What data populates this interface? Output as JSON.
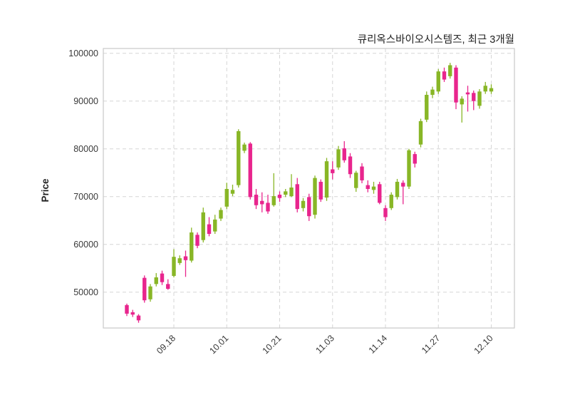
{
  "chart_data": {
    "type": "candlestick",
    "title": "큐리옥스바이오시스템즈, 최근 3개월",
    "ylabel": "Price",
    "x_tick_labels": [
      "09.18",
      "10.01",
      "10.21",
      "11.03",
      "11.14",
      "11.27",
      "12.10"
    ],
    "x_tick_indices": [
      8,
      17,
      26,
      35,
      44,
      53,
      62
    ],
    "y_ticks": [
      50000,
      60000,
      70000,
      80000,
      90000,
      100000
    ],
    "ylim": [
      42500,
      101000
    ],
    "grid": true,
    "legend": "none",
    "up_color": "#88b626",
    "down_color": "#e8258d",
    "candles_format": [
      "open",
      "high",
      "low",
      "close"
    ],
    "candles": [
      [
        47300,
        47600,
        45000,
        45500
      ],
      [
        45800,
        46300,
        44800,
        45300
      ],
      [
        45100,
        45400,
        43600,
        44100
      ],
      [
        53000,
        53500,
        47800,
        48300
      ],
      [
        48500,
        51700,
        48000,
        51200
      ],
      [
        51700,
        54000,
        51200,
        53100
      ],
      [
        53900,
        54500,
        51500,
        52100
      ],
      [
        51700,
        52700,
        50500,
        50700
      ],
      [
        53400,
        59000,
        53100,
        57400
      ],
      [
        56100,
        57700,
        55700,
        57100
      ],
      [
        57500,
        58700,
        53200,
        56700
      ],
      [
        56600,
        63500,
        56200,
        62500
      ],
      [
        62000,
        62500,
        59200,
        59700
      ],
      [
        60900,
        67700,
        60400,
        66700
      ],
      [
        64200,
        65700,
        61700,
        62200
      ],
      [
        62700,
        66200,
        62200,
        65200
      ],
      [
        65400,
        67700,
        64900,
        67200
      ],
      [
        67900,
        72900,
        67400,
        71600
      ],
      [
        70600,
        72500,
        70100,
        71400
      ],
      [
        72400,
        84100,
        71900,
        83700
      ],
      [
        79600,
        81300,
        79100,
        80900
      ],
      [
        81100,
        81400,
        69400,
        69900
      ],
      [
        70400,
        71600,
        67400,
        68200
      ],
      [
        69100,
        70900,
        66700,
        68400
      ],
      [
        68700,
        70400,
        66400,
        66900
      ],
      [
        68200,
        74900,
        67900,
        70100
      ],
      [
        70400,
        71100,
        68900,
        69700
      ],
      [
        70400,
        71600,
        69900,
        71100
      ],
      [
        70100,
        74700,
        69900,
        71900
      ],
      [
        72600,
        73900,
        66700,
        67400
      ],
      [
        67600,
        69700,
        66900,
        69100
      ],
      [
        69900,
        70600,
        64900,
        65900
      ],
      [
        66200,
        74400,
        65400,
        73900
      ],
      [
        73100,
        73600,
        68900,
        69400
      ],
      [
        69800,
        78100,
        69100,
        77400
      ],
      [
        75700,
        77400,
        73600,
        74900
      ],
      [
        76100,
        80600,
        75600,
        79900
      ],
      [
        80100,
        81600,
        77100,
        77600
      ],
      [
        78400,
        79100,
        73900,
        74700
      ],
      [
        71800,
        75400,
        71000,
        75000
      ],
      [
        76300,
        77000,
        72800,
        73400
      ],
      [
        72400,
        73400,
        70900,
        71600
      ],
      [
        71400,
        73100,
        70600,
        72100
      ],
      [
        72600,
        73100,
        68400,
        68700
      ],
      [
        67600,
        68200,
        64900,
        65700
      ],
      [
        67600,
        70900,
        67200,
        70400
      ],
      [
        69900,
        73700,
        69400,
        73100
      ],
      [
        72900,
        73400,
        68400,
        72100
      ],
      [
        72100,
        80000,
        71600,
        79700
      ],
      [
        78900,
        79400,
        76100,
        76900
      ],
      [
        80900,
        86300,
        80300,
        85800
      ],
      [
        86100,
        92000,
        85600,
        91300
      ],
      [
        91300,
        93000,
        90600,
        92400
      ],
      [
        92000,
        96700,
        91500,
        96200
      ],
      [
        96200,
        97000,
        94000,
        94500
      ],
      [
        95200,
        98000,
        94700,
        97500
      ],
      [
        97000,
        97500,
        88300,
        89700
      ],
      [
        89300,
        91000,
        85500,
        90500
      ],
      [
        91800,
        93200,
        87800,
        91400
      ],
      [
        91700,
        92200,
        88100,
        90000
      ],
      [
        89000,
        92500,
        88400,
        92000
      ],
      [
        92000,
        94000,
        91500,
        93200
      ],
      [
        92000,
        93500,
        91500,
        92700
      ]
    ]
  }
}
